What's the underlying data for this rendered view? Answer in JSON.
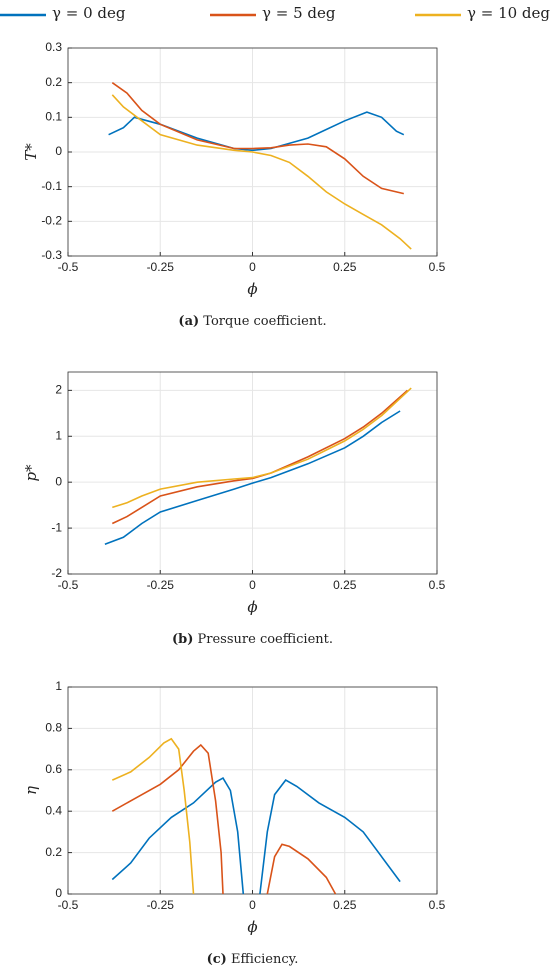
{
  "chart_data": [
    {
      "type": "line",
      "title_label": "(a)",
      "title": "Torque coefficient.",
      "xlabel": "ϕ",
      "ylabel": "T*",
      "xlim": [
        -0.5,
        0.5
      ],
      "xticks": [
        -0.5,
        -0.25,
        0,
        0.25,
        0.5
      ],
      "ylim": [
        -0.3,
        0.3
      ],
      "yticks": [
        -0.3,
        -0.2,
        -0.1,
        0,
        0.1,
        0.2,
        0.3
      ],
      "grid": true,
      "series": [
        {
          "name": "γ = 0 deg",
          "color": "#0072bd",
          "x": [
            -0.39,
            -0.35,
            -0.32,
            -0.25,
            -0.15,
            -0.05,
            0,
            0.05,
            0.15,
            0.25,
            0.31,
            0.35,
            0.39,
            0.41
          ],
          "values": [
            0.05,
            0.07,
            0.1,
            0.08,
            0.04,
            0.01,
            0.005,
            0.01,
            0.04,
            0.09,
            0.115,
            0.1,
            0.06,
            0.05
          ]
        },
        {
          "name": "γ = 5 deg",
          "color": "#d95319",
          "x": [
            -0.38,
            -0.34,
            -0.3,
            -0.25,
            -0.15,
            -0.05,
            0,
            0.05,
            0.1,
            0.15,
            0.2,
            0.25,
            0.3,
            0.35,
            0.41
          ],
          "values": [
            0.2,
            0.17,
            0.12,
            0.08,
            0.035,
            0.01,
            0.01,
            0.012,
            0.02,
            0.023,
            0.015,
            -0.02,
            -0.07,
            -0.105,
            -0.12
          ]
        },
        {
          "name": "γ = 10 deg",
          "color": "#edb120",
          "x": [
            -0.38,
            -0.35,
            -0.3,
            -0.25,
            -0.15,
            -0.05,
            0,
            0.05,
            0.1,
            0.15,
            0.2,
            0.25,
            0.3,
            0.35,
            0.4,
            0.43
          ],
          "values": [
            0.165,
            0.13,
            0.09,
            0.05,
            0.02,
            0.005,
            0,
            -0.01,
            -0.03,
            -0.07,
            -0.115,
            -0.15,
            -0.18,
            -0.21,
            -0.25,
            -0.28
          ]
        }
      ]
    },
    {
      "type": "line",
      "title_label": "(b)",
      "title": "Pressure coefficient.",
      "xlabel": "ϕ",
      "ylabel": "p*",
      "xlim": [
        -0.5,
        0.5
      ],
      "xticks": [
        -0.5,
        -0.25,
        0,
        0.25,
        0.5
      ],
      "ylim": [
        -2,
        2.4
      ],
      "yticks": [
        -2,
        -1,
        0,
        1,
        2
      ],
      "grid": true,
      "series": [
        {
          "color": "#0072bd",
          "x": [
            -0.4,
            -0.35,
            -0.3,
            -0.25,
            -0.15,
            -0.05,
            0,
            0.05,
            0.15,
            0.25,
            0.3,
            0.35,
            0.4
          ],
          "values": [
            -1.35,
            -1.2,
            -0.9,
            -0.65,
            -0.4,
            -0.15,
            -0.02,
            0.1,
            0.4,
            0.75,
            1.0,
            1.3,
            1.55
          ]
        },
        {
          "color": "#d95319",
          "x": [
            -0.38,
            -0.34,
            -0.3,
            -0.25,
            -0.15,
            -0.05,
            0,
            0.05,
            0.15,
            0.25,
            0.3,
            0.35,
            0.42
          ],
          "values": [
            -0.9,
            -0.75,
            -0.55,
            -0.3,
            -0.1,
            0.03,
            0.08,
            0.2,
            0.55,
            0.95,
            1.2,
            1.5,
            2.0
          ]
        },
        {
          "color": "#edb120",
          "x": [
            -0.38,
            -0.34,
            -0.3,
            -0.25,
            -0.15,
            -0.05,
            0,
            0.05,
            0.15,
            0.25,
            0.3,
            0.35,
            0.43
          ],
          "values": [
            -0.55,
            -0.45,
            -0.3,
            -0.15,
            0,
            0.07,
            0.1,
            0.2,
            0.5,
            0.9,
            1.15,
            1.45,
            2.05
          ]
        }
      ]
    },
    {
      "type": "line",
      "title_label": "(c)",
      "title": "Efficiency.",
      "xlabel": "ϕ",
      "ylabel": "η",
      "xlim": [
        -0.5,
        0.5
      ],
      "xticks": [
        -0.5,
        -0.25,
        0,
        0.25,
        0.5
      ],
      "ylim": [
        0,
        1
      ],
      "yticks": [
        0,
        0.2,
        0.4,
        0.6,
        0.8,
        1
      ],
      "grid": true,
      "series": [
        {
          "color": "#0072bd",
          "x": [
            -0.38,
            -0.33,
            -0.28,
            -0.22,
            -0.16,
            -0.1,
            -0.08,
            -0.06,
            -0.04,
            -0.025,
            null,
            0.02,
            0.04,
            0.06,
            0.09,
            0.12,
            0.18,
            0.25,
            0.3,
            0.35,
            0.4
          ],
          "values": [
            0.07,
            0.15,
            0.27,
            0.37,
            0.44,
            0.54,
            0.56,
            0.5,
            0.3,
            0,
            null,
            0,
            0.3,
            0.48,
            0.55,
            0.52,
            0.44,
            0.37,
            0.3,
            0.18,
            0.06
          ]
        },
        {
          "color": "#d95319",
          "x": [
            -0.38,
            -0.32,
            -0.25,
            -0.2,
            -0.16,
            -0.14,
            -0.12,
            -0.1,
            -0.085,
            -0.08,
            null,
            0.04,
            0.06,
            0.08,
            0.1,
            0.15,
            0.2,
            0.225
          ],
          "values": [
            0.4,
            0.46,
            0.53,
            0.6,
            0.69,
            0.72,
            0.68,
            0.45,
            0.2,
            0,
            null,
            0,
            0.18,
            0.24,
            0.23,
            0.17,
            0.08,
            0
          ]
        },
        {
          "color": "#edb120",
          "x": [
            -0.38,
            -0.33,
            -0.28,
            -0.24,
            -0.22,
            -0.2,
            -0.185,
            -0.17,
            -0.16
          ],
          "values": [
            0.55,
            0.59,
            0.66,
            0.73,
            0.75,
            0.7,
            0.5,
            0.25,
            0
          ]
        }
      ]
    }
  ]
}
